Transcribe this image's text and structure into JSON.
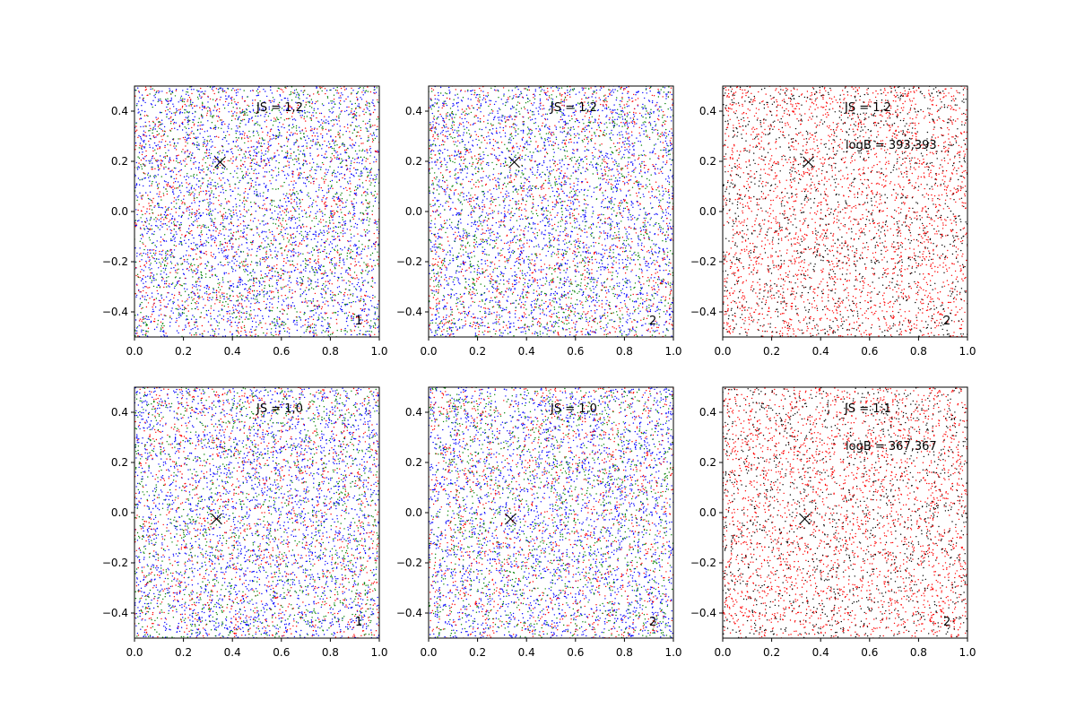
{
  "colors": {
    "red": "#ff0000",
    "green": "#008000",
    "blue": "#0000ff",
    "black": "#000000",
    "marker": "#000000"
  },
  "chart_data": [
    {
      "type": "scatter",
      "panel": "top-left",
      "xlim": [
        0.0,
        1.0
      ],
      "ylim": [
        -0.5,
        0.5
      ],
      "x_ticks": [
        0.0,
        0.2,
        0.4,
        0.6,
        0.8,
        1.0
      ],
      "x_tick_labels": [
        "0.0",
        "0.2",
        "0.4",
        "0.6",
        "0.8",
        "1.0"
      ],
      "y_ticks": [
        -0.4,
        -0.2,
        0.0,
        0.2,
        0.4
      ],
      "y_tick_labels": [
        "−0.4",
        "−0.2",
        "0.0",
        "0.2",
        "0.4"
      ],
      "annotations": [
        "JS = 1,2"
      ],
      "corner_label": "1",
      "marker": {
        "x": 0.35,
        "y": 0.197,
        "symbol": "x"
      },
      "series": [
        {
          "color": "blue",
          "distribution": "uniform",
          "density": "high"
        },
        {
          "color": "red",
          "distribution": "uniform",
          "density": "medium"
        },
        {
          "color": "green",
          "distribution": "uniform",
          "density": "medium"
        }
      ]
    },
    {
      "type": "scatter",
      "panel": "top-middle",
      "xlim": [
        0.0,
        1.0
      ],
      "ylim": [
        -0.5,
        0.5
      ],
      "x_ticks": [
        0.0,
        0.2,
        0.4,
        0.6,
        0.8,
        1.0
      ],
      "x_tick_labels": [
        "0.0",
        "0.2",
        "0.4",
        "0.6",
        "0.8",
        "1.0"
      ],
      "y_ticks": [
        -0.4,
        -0.2,
        0.0,
        0.2,
        0.4
      ],
      "y_tick_labels": [
        "−0.4",
        "−0.2",
        "0.0",
        "0.2",
        "0.4"
      ],
      "annotations": [
        "JS = 1,2"
      ],
      "corner_label": "2",
      "marker": {
        "x": 0.35,
        "y": 0.197,
        "symbol": "x"
      },
      "series": [
        {
          "color": "blue",
          "distribution": "uniform",
          "density": "high"
        },
        {
          "color": "red",
          "distribution": "uniform",
          "density": "medium"
        },
        {
          "color": "green",
          "distribution": "uniform",
          "density": "medium"
        }
      ]
    },
    {
      "type": "scatter",
      "panel": "top-right",
      "xlim": [
        0.0,
        1.0
      ],
      "ylim": [
        -0.5,
        0.5
      ],
      "x_ticks": [
        0.0,
        0.2,
        0.4,
        0.6,
        0.8,
        1.0
      ],
      "x_tick_labels": [
        "0.0",
        "0.2",
        "0.4",
        "0.6",
        "0.8",
        "1.0"
      ],
      "y_ticks": [
        -0.4,
        -0.2,
        0.0,
        0.2,
        0.4
      ],
      "y_tick_labels": [
        "−0.4",
        "−0.2",
        "0.0",
        "0.2",
        "0.4"
      ],
      "annotations": [
        "JS = 1,2",
        "logB = 393,393"
      ],
      "corner_label": "2",
      "marker": {
        "x": 0.35,
        "y": 0.197,
        "symbol": "x"
      },
      "series": [
        {
          "color": "red",
          "distribution": "uniform",
          "density": "high"
        },
        {
          "color": "black",
          "distribution": "uniform",
          "density": "medium"
        }
      ]
    },
    {
      "type": "scatter",
      "panel": "bottom-left",
      "xlim": [
        0.0,
        1.0
      ],
      "ylim": [
        -0.5,
        0.5
      ],
      "x_ticks": [
        0.0,
        0.2,
        0.4,
        0.6,
        0.8,
        1.0
      ],
      "x_tick_labels": [
        "0.0",
        "0.2",
        "0.4",
        "0.6",
        "0.8",
        "1.0"
      ],
      "y_ticks": [
        -0.4,
        -0.2,
        0.0,
        0.2,
        0.4
      ],
      "y_tick_labels": [
        "−0.4",
        "−0.2",
        "0.0",
        "0.2",
        "0.4"
      ],
      "annotations": [
        "JS = 1,0"
      ],
      "corner_label": "1",
      "marker": {
        "x": 0.335,
        "y": -0.025,
        "symbol": "x"
      },
      "series": [
        {
          "color": "blue",
          "distribution": "uniform",
          "density": "high"
        },
        {
          "color": "red",
          "distribution": "uniform",
          "density": "medium"
        },
        {
          "color": "green",
          "distribution": "uniform",
          "density": "medium"
        }
      ]
    },
    {
      "type": "scatter",
      "panel": "bottom-middle",
      "xlim": [
        0.0,
        1.0
      ],
      "ylim": [
        -0.5,
        0.5
      ],
      "x_ticks": [
        0.0,
        0.2,
        0.4,
        0.6,
        0.8,
        1.0
      ],
      "x_tick_labels": [
        "0.0",
        "0.2",
        "0.4",
        "0.6",
        "0.8",
        "1.0"
      ],
      "y_ticks": [
        -0.4,
        -0.2,
        0.0,
        0.2,
        0.4
      ],
      "y_tick_labels": [
        "−0.4",
        "−0.2",
        "0.0",
        "0.2",
        "0.4"
      ],
      "annotations": [
        "JS = 1,0"
      ],
      "corner_label": "2",
      "marker": {
        "x": 0.335,
        "y": -0.025,
        "symbol": "x"
      },
      "series": [
        {
          "color": "blue",
          "distribution": "uniform",
          "density": "high"
        },
        {
          "color": "red",
          "distribution": "uniform",
          "density": "medium"
        },
        {
          "color": "green",
          "distribution": "uniform",
          "density": "medium"
        }
      ]
    },
    {
      "type": "scatter",
      "panel": "bottom-right",
      "xlim": [
        0.0,
        1.0
      ],
      "ylim": [
        -0.5,
        0.5
      ],
      "x_ticks": [
        0.0,
        0.2,
        0.4,
        0.6,
        0.8,
        1.0
      ],
      "x_tick_labels": [
        "0.0",
        "0.2",
        "0.4",
        "0.6",
        "0.8",
        "1.0"
      ],
      "y_ticks": [
        -0.4,
        -0.2,
        0.0,
        0.2,
        0.4
      ],
      "y_tick_labels": [
        "−0.4",
        "−0.2",
        "0.0",
        "0.2",
        "0.4"
      ],
      "annotations": [
        "JS = 1,1",
        "logB = 367,367"
      ],
      "corner_label": "2",
      "marker": {
        "x": 0.335,
        "y": -0.025,
        "symbol": "x"
      },
      "series": [
        {
          "color": "red",
          "distribution": "uniform",
          "density": "high"
        },
        {
          "color": "black",
          "distribution": "uniform",
          "density": "medium"
        }
      ]
    }
  ]
}
